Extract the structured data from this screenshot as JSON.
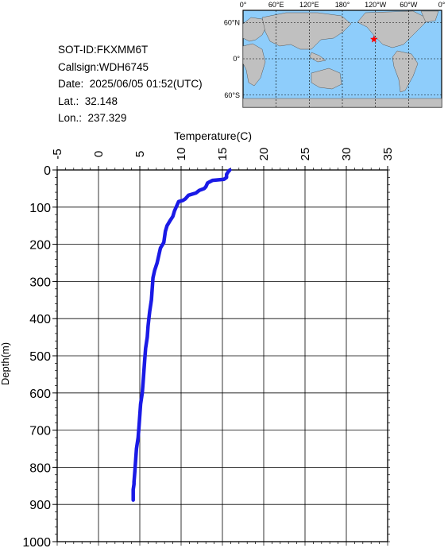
{
  "info": {
    "sot_id": "SOT-ID:FKXMM6T",
    "callsign": "Callsign:WDH6745",
    "date": "Date:  2025/06/05 01:52(UTC)",
    "lat": "Lat.:  32.148",
    "lon": "Lon.:  237.329"
  },
  "map": {
    "top_labels": [
      "0°",
      "60°E",
      "120°E",
      "180°",
      "120°W",
      "60°W",
      "0°"
    ],
    "left_labels": [
      "60°N",
      "0°",
      "60°S"
    ],
    "marker": {
      "lat": 32.148,
      "lon": 237.329,
      "color": "#ff0000"
    },
    "ocean_color": "#8ecdfb",
    "land_color": "#c0c0c0"
  },
  "chart_data": {
    "type": "line",
    "title": "Temperature(C)",
    "xlabel": "Temperature(C)",
    "ylabel": "Depth(m)",
    "xlim": [
      -5,
      35
    ],
    "ylim": [
      1000,
      0
    ],
    "x_ticks": [
      "-5",
      "0",
      "5",
      "10",
      "15",
      "20",
      "25",
      "30",
      "35"
    ],
    "y_ticks": [
      "0",
      "100",
      "200",
      "300",
      "400",
      "500",
      "600",
      "700",
      "800",
      "900",
      "1000"
    ],
    "grid": true,
    "line_color": "#1a1ae6",
    "series": [
      {
        "points": [
          [
            15.9,
            0
          ],
          [
            15.7,
            5
          ],
          [
            15.5,
            12
          ],
          [
            15.5,
            20
          ],
          [
            15.2,
            25
          ],
          [
            13.8,
            28
          ],
          [
            13.2,
            35
          ],
          [
            13.0,
            45
          ],
          [
            12.8,
            50
          ],
          [
            12.2,
            55
          ],
          [
            11.8,
            62
          ],
          [
            10.9,
            68
          ],
          [
            10.5,
            78
          ],
          [
            10.2,
            82
          ],
          [
            9.7,
            85
          ],
          [
            9.5,
            95
          ],
          [
            9.2,
            110
          ],
          [
            9.0,
            125
          ],
          [
            8.7,
            135
          ],
          [
            8.3,
            150
          ],
          [
            8.1,
            165
          ],
          [
            8.0,
            180
          ],
          [
            7.9,
            195
          ],
          [
            7.5,
            210
          ],
          [
            7.3,
            230
          ],
          [
            7.1,
            250
          ],
          [
            6.8,
            270
          ],
          [
            6.6,
            290
          ],
          [
            6.5,
            320
          ],
          [
            6.4,
            350
          ],
          [
            6.2,
            380
          ],
          [
            6.1,
            400
          ],
          [
            6.0,
            420
          ],
          [
            5.9,
            450
          ],
          [
            5.7,
            480
          ],
          [
            5.6,
            510
          ],
          [
            5.5,
            540
          ],
          [
            5.4,
            570
          ],
          [
            5.3,
            600
          ],
          [
            5.1,
            630
          ],
          [
            5.0,
            660
          ],
          [
            4.9,
            690
          ],
          [
            4.8,
            720
          ],
          [
            4.6,
            750
          ],
          [
            4.5,
            780
          ],
          [
            4.4,
            810
          ],
          [
            4.3,
            840
          ],
          [
            4.3,
            845
          ],
          [
            4.2,
            860
          ],
          [
            4.2,
            875
          ],
          [
            4.2,
            888
          ]
        ]
      }
    ]
  }
}
